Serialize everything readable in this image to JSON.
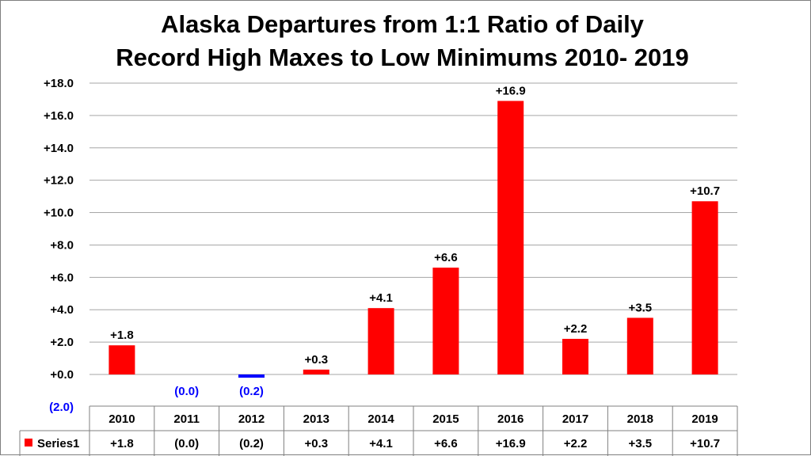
{
  "chart_data": {
    "type": "bar",
    "title_lines": [
      "Alaska Departures from 1:1 Ratio of Daily",
      "Record High Maxes to Low Minimums 2010- 2019"
    ],
    "categories": [
      "2010",
      "2011",
      "2012",
      "2013",
      "2014",
      "2015",
      "2016",
      "2017",
      "2018",
      "2019"
    ],
    "series": [
      {
        "name": "Series1",
        "values": [
          1.8,
          0.0,
          -0.2,
          0.3,
          4.1,
          6.6,
          16.9,
          2.2,
          3.5,
          10.7
        ],
        "labels": [
          "+1.8",
          "(0.0)",
          "(0.2)",
          "+0.3",
          "+4.1",
          "+6.6",
          "+16.9",
          "+2.2",
          "+3.5",
          "+10.7"
        ]
      }
    ],
    "ylim": [
      -2,
      18
    ],
    "yticks": [
      -2,
      0,
      2,
      4,
      6,
      8,
      10,
      12,
      14,
      16,
      18
    ],
    "ytick_labels": [
      "(2.0)",
      "+0.0",
      "+2.0",
      "+4.0",
      "+6.0",
      "+8.0",
      "+10.0",
      "+12.0",
      "+14.0",
      "+16.0",
      "+18.0"
    ],
    "grid": true,
    "legend": "data-table",
    "colors": {
      "positive": "#ff0000",
      "negative": "#0000ff",
      "grid": "#a6a6a6"
    }
  }
}
